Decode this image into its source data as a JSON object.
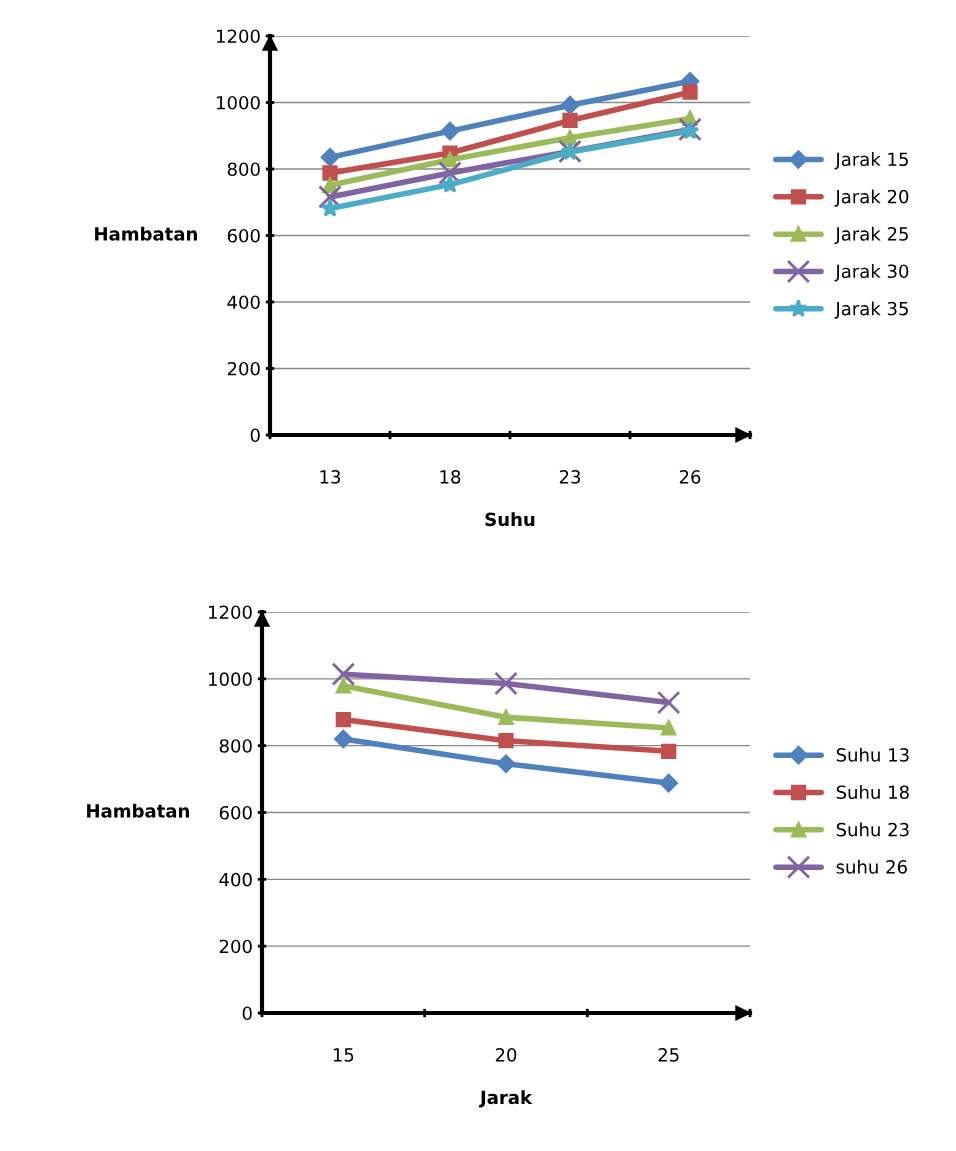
{
  "chart_data": [
    {
      "type": "line",
      "xlabel": "Suhu",
      "ylabel": "Hambatan",
      "categories": [
        "13",
        "18",
        "23",
        "26"
      ],
      "ylim": [
        0,
        1200
      ],
      "yticks": [
        0,
        200,
        400,
        600,
        800,
        1000,
        1200
      ],
      "grid": "y",
      "legend": "right",
      "series": [
        {
          "name": "Jarak 15",
          "color": "#4f81bd",
          "marker": "diamond",
          "values": [
            835,
            914,
            992,
            1064
          ]
        },
        {
          "name": "Jarak 20",
          "color": "#c0504d",
          "marker": "square",
          "values": [
            788,
            848,
            946,
            1031
          ]
        },
        {
          "name": "Jarak 25",
          "color": "#9bbb59",
          "marker": "triangle",
          "values": [
            751,
            828,
            894,
            952
          ]
        },
        {
          "name": "Jarak 30",
          "color": "#8064a2",
          "marker": "cross",
          "values": [
            716,
            788,
            853,
            919
          ]
        },
        {
          "name": "Jarak 35",
          "color": "#4bacc6",
          "marker": "star",
          "values": [
            681,
            753,
            851,
            914
          ]
        }
      ]
    },
    {
      "type": "line",
      "xlabel": "Jarak",
      "ylabel": "Hambatan",
      "categories": [
        "15",
        "20",
        "25"
      ],
      "ylim": [
        0,
        1200
      ],
      "yticks": [
        0,
        200,
        400,
        600,
        800,
        1000,
        1200
      ],
      "grid": "y",
      "legend": "right",
      "series": [
        {
          "name": "Suhu 13",
          "color": "#4f81bd",
          "marker": "diamond",
          "values": [
            820,
            746,
            688
          ]
        },
        {
          "name": "Suhu 18",
          "color": "#c0504d",
          "marker": "square",
          "values": [
            878,
            815,
            783
          ]
        },
        {
          "name": "Suhu 23",
          "color": "#9bbb59",
          "marker": "triangle",
          "values": [
            979,
            885,
            853
          ]
        },
        {
          "name": "suhu 26",
          "color": "#8064a2",
          "marker": "cross",
          "values": [
            1014,
            986,
            929
          ]
        }
      ]
    }
  ]
}
